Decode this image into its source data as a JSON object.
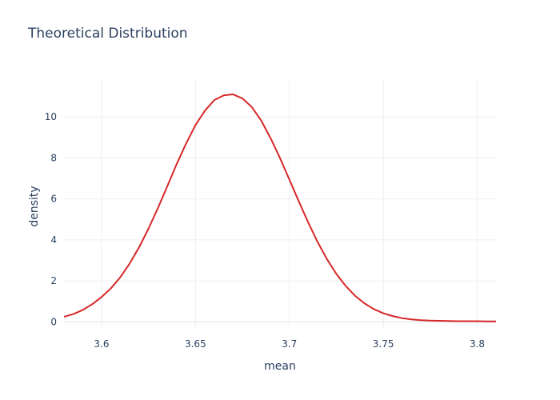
{
  "chart_data": {
    "type": "line",
    "title": "Theoretical Distribution",
    "xlabel": "mean",
    "ylabel": "density",
    "xlim": [
      3.58,
      3.81
    ],
    "ylim": [
      -0.3,
      11.8
    ],
    "x_ticks": [
      3.6,
      3.65,
      3.7,
      3.75,
      3.8
    ],
    "x_tick_labels": [
      "3.6",
      "3.65",
      "3.7",
      "3.75",
      "3.8"
    ],
    "y_ticks": [
      0,
      2,
      4,
      6,
      8,
      10
    ],
    "y_tick_labels": [
      "0",
      "2",
      "4",
      "6",
      "8",
      "10"
    ],
    "grid": true,
    "line_color": "#d62728",
    "series": [
      {
        "x": [
          3.58,
          3.585,
          3.59,
          3.595,
          3.6,
          3.605,
          3.61,
          3.615,
          3.62,
          3.625,
          3.63,
          3.635,
          3.64,
          3.645,
          3.65,
          3.655,
          3.66,
          3.665,
          3.67,
          3.675,
          3.68,
          3.685,
          3.69,
          3.695,
          3.7,
          3.705,
          3.71,
          3.715,
          3.72,
          3.725,
          3.73,
          3.735,
          3.74,
          3.745,
          3.75,
          3.755,
          3.76,
          3.765,
          3.77,
          3.775,
          3.78,
          3.785,
          3.79,
          3.795,
          3.8,
          3.805,
          3.81
        ],
        "y": [
          0.25,
          0.38,
          0.58,
          0.86,
          1.21,
          1.64,
          2.18,
          2.85,
          3.64,
          4.55,
          5.55,
          6.62,
          7.7,
          8.7,
          9.6,
          10.3,
          10.82,
          11.05,
          11.1,
          10.9,
          10.48,
          9.82,
          8.96,
          7.99,
          6.94,
          5.88,
          4.85,
          3.9,
          3.06,
          2.34,
          1.75,
          1.27,
          0.9,
          0.62,
          0.42,
          0.28,
          0.18,
          0.12,
          0.08,
          0.06,
          0.05,
          0.04,
          0.03,
          0.03,
          0.03,
          0.02,
          0.02
        ]
      }
    ]
  }
}
